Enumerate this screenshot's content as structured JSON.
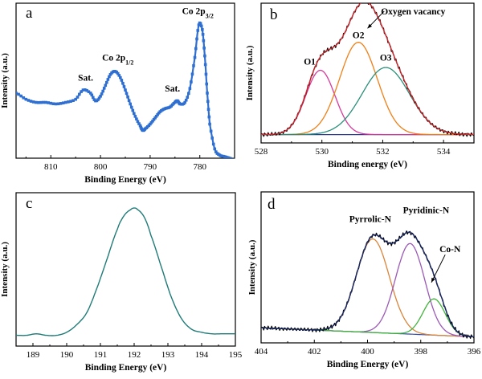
{
  "panels": {
    "a": {
      "letter": "a"
    },
    "b": {
      "letter": "b"
    },
    "c": {
      "letter": "c"
    },
    "d": {
      "letter": "d"
    }
  },
  "chart_data": [
    {
      "id": "a",
      "type": "line",
      "xlabel": "Binding Energy (eV)",
      "ylabel": "Intensity (a.u.)",
      "xlim": [
        817,
        773
      ],
      "xticks": [
        810,
        800,
        790,
        780
      ],
      "ylim": [
        0,
        1
      ],
      "ytick_labels": false,
      "series": [
        {
          "color": "#2e6fd1",
          "marker": "square",
          "x": [
            817,
            815,
            813,
            811,
            809,
            807,
            805,
            803.5,
            802,
            801,
            800,
            799,
            798,
            797,
            796,
            795,
            794,
            793,
            792,
            791.5,
            791,
            790,
            789,
            788,
            787,
            786,
            785,
            784.5,
            784,
            783,
            782,
            781,
            780.2,
            779.5,
            779,
            778.5,
            778,
            777,
            776,
            775,
            774,
            773
          ],
          "y": [
            0.42,
            0.38,
            0.36,
            0.36,
            0.35,
            0.36,
            0.38,
            0.44,
            0.42,
            0.37,
            0.4,
            0.47,
            0.54,
            0.56,
            0.52,
            0.44,
            0.35,
            0.27,
            0.21,
            0.18,
            0.19,
            0.22,
            0.26,
            0.3,
            0.32,
            0.33,
            0.36,
            0.37,
            0.35,
            0.36,
            0.45,
            0.65,
            0.86,
            0.83,
            0.66,
            0.42,
            0.22,
            0.06,
            0.02,
            0.01,
            0.0,
            -0.01
          ]
        }
      ],
      "annotations": [
        {
          "text": "Sat.",
          "x": 803,
          "y": 0.5
        },
        {
          "text": "Co 2p",
          "sub": "1/2",
          "x": 796.5,
          "y": 0.63
        },
        {
          "text": "Sat.",
          "x": 785.5,
          "y": 0.43
        },
        {
          "text": "Co 2p",
          "sub": "3/2",
          "x": 780.4,
          "y": 0.93
        }
      ]
    },
    {
      "id": "b",
      "type": "line",
      "xlabel": "Binding energy (eV)",
      "ylabel": "Intensity (a.u.)",
      "xlim": [
        528,
        535
      ],
      "xticks": [
        528,
        530,
        532,
        534
      ],
      "ylim": [
        0,
        1
      ],
      "ytick_labels": false,
      "baseline": 0.06,
      "components": [
        {
          "name": "O1",
          "center": 529.95,
          "sigma": 0.48,
          "height": 0.46,
          "color": "#d6399b"
        },
        {
          "name": "O2",
          "center": 531.2,
          "sigma": 0.62,
          "height": 0.66,
          "color": "#ef7f16"
        },
        {
          "name": "O3",
          "center": 532.1,
          "sigma": 0.78,
          "height": 0.48,
          "color": "#2a8f7a"
        }
      ],
      "envelope": {
        "name": "Oxygen vacancy",
        "color": "#d9262b"
      },
      "raw": {
        "color": "#000000"
      },
      "baseline_color": "#2c3d99",
      "annotations": [
        {
          "text": "O1",
          "x": 529.6,
          "y": 0.56
        },
        {
          "text": "O2",
          "x": 531.2,
          "y": 0.75
        },
        {
          "text": "O3",
          "x": 532.1,
          "y": 0.59
        },
        {
          "text": "Oxygen vacancy",
          "x": 533.0,
          "y": 0.92,
          "arrow_to": [
            531.5,
            0.82
          ]
        }
      ]
    },
    {
      "id": "c",
      "type": "line",
      "xlabel": "Binding Energy (eV)",
      "ylabel": "Intensity (a.u.)",
      "xlim": [
        188.5,
        195
      ],
      "xticks": [
        189,
        190,
        191,
        192,
        193,
        194,
        195
      ],
      "ylim": [
        0,
        1
      ],
      "ytick_labels": false,
      "series": [
        {
          "color": "#1f7b78",
          "x": [
            188.5,
            188.8,
            189.1,
            189.4,
            189.7,
            190.0,
            190.3,
            190.6,
            190.9,
            191.2,
            191.5,
            191.7,
            191.9,
            192.0,
            192.1,
            192.3,
            192.5,
            192.8,
            193.1,
            193.4,
            193.7,
            194.0,
            194.3,
            194.6,
            195.0
          ],
          "y": [
            0.07,
            0.07,
            0.08,
            0.07,
            0.07,
            0.09,
            0.14,
            0.22,
            0.38,
            0.57,
            0.76,
            0.85,
            0.89,
            0.9,
            0.89,
            0.84,
            0.72,
            0.52,
            0.32,
            0.18,
            0.11,
            0.09,
            0.08,
            0.08,
            0.08
          ]
        }
      ]
    },
    {
      "id": "d",
      "type": "line",
      "xlabel": "Binding Energy (eV)",
      "ylabel": "Intensity (a.u.)",
      "xlim": [
        404,
        396
      ],
      "xticks": [
        404,
        402,
        400,
        398,
        396
      ],
      "ylim": [
        0,
        1
      ],
      "ytick_labels": false,
      "baseline_start": 0.1,
      "baseline_end": 0.04,
      "components": [
        {
          "name": "Pyrrolic-N",
          "center": 399.8,
          "sigma": 0.62,
          "height": 0.62,
          "color": "#d9843a"
        },
        {
          "name": "Pyridinic-N",
          "center": 398.4,
          "sigma": 0.55,
          "height": 0.6,
          "color": "#9b59b6"
        },
        {
          "name": "Co-N",
          "center": 397.5,
          "sigma": 0.42,
          "height": 0.24,
          "color": "#41b43c"
        }
      ],
      "envelope": {
        "color": "#1b2a6b"
      },
      "raw": {
        "color": "#000000"
      },
      "baseline_color": "#2e4aa8",
      "annotations": [
        {
          "text": "Pyrrolic-N",
          "x": 399.9,
          "y": 0.8
        },
        {
          "text": "Pyridinic-N",
          "x": 397.8,
          "y": 0.86
        },
        {
          "text": "Co-N",
          "x": 396.9,
          "y": 0.6,
          "arrow_to": [
            397.6,
            0.4
          ]
        }
      ]
    }
  ]
}
